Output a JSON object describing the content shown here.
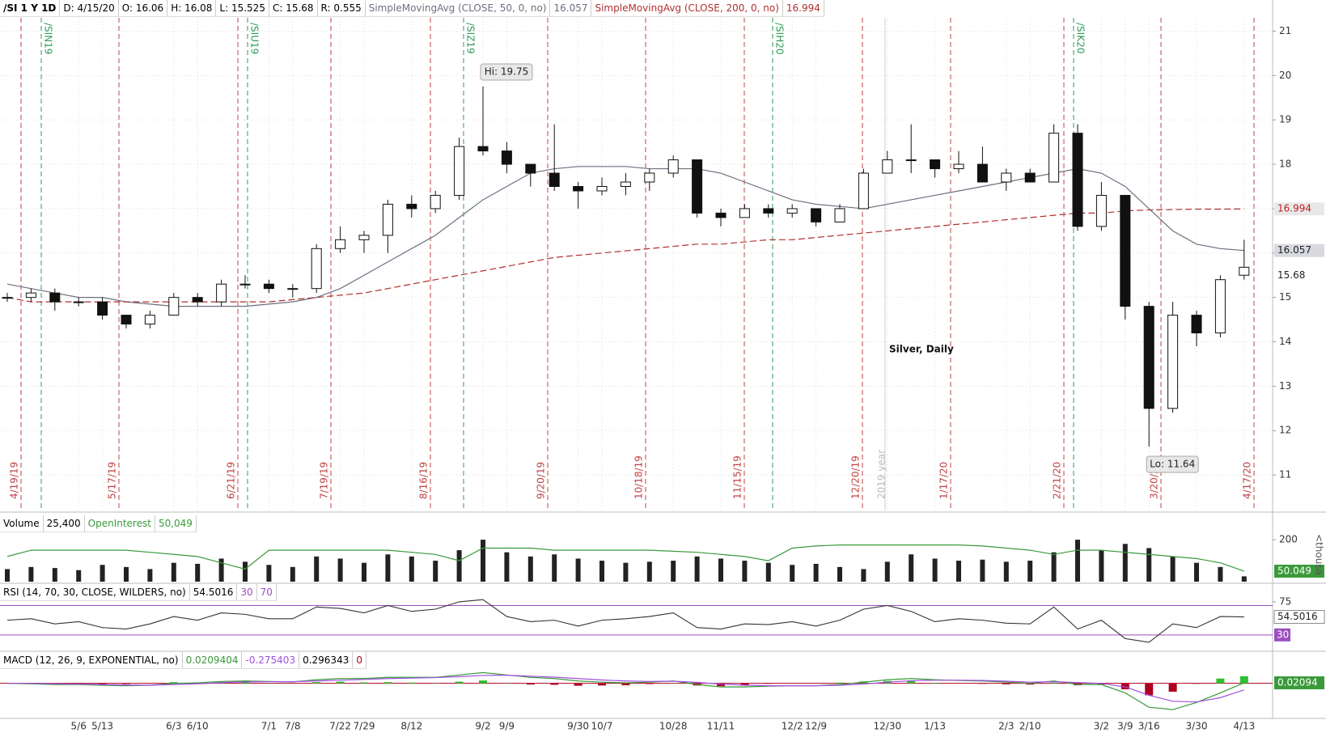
{
  "header": {
    "symbol": "/SI 1 Y 1D",
    "items": [
      "D: 4/15/20",
      "O: 16.06",
      "H: 16.08",
      "L: 15.525",
      "C: 15.68",
      "R: 0.555"
    ]
  },
  "chart_data": [
    {
      "type": "candlestick",
      "title": "Silver, Daily",
      "categories": [
        null,
        null,
        null,
        "5/6",
        "5/13",
        null,
        null,
        "6/3",
        "6/10",
        null,
        null,
        "7/1",
        "7/8",
        null,
        "7/22",
        "7/29",
        null,
        "8/12",
        null,
        null,
        "9/2",
        "9/9",
        null,
        null,
        "9/30",
        "10/7",
        null,
        null,
        "10/28",
        null,
        "11/11",
        null,
        null,
        "12/2",
        "12/9",
        null,
        null,
        "12/30",
        null,
        "1/13",
        null,
        null,
        "2/3",
        "2/10",
        null,
        null,
        "3/2",
        "3/9",
        "3/16",
        null,
        "3/30",
        null,
        "4/13"
      ],
      "open": [
        15.0,
        15.0,
        15.1,
        14.9,
        14.9,
        14.6,
        14.4,
        14.6,
        15.0,
        14.9,
        15.3,
        15.3,
        15.2,
        15.2,
        16.1,
        16.3,
        16.4,
        17.1,
        17.0,
        17.3,
        18.4,
        18.3,
        18.0,
        17.8,
        17.5,
        17.4,
        17.5,
        17.6,
        17.8,
        18.1,
        16.9,
        16.8,
        17.0,
        16.9,
        17.0,
        16.7,
        17.0,
        17.8,
        18.1,
        18.1,
        17.9,
        18.0,
        17.6,
        17.8,
        17.6,
        18.7,
        16.6,
        17.3,
        14.8,
        12.5,
        14.6,
        14.2,
        15.5
      ],
      "high": [
        15.1,
        15.2,
        15.2,
        15.0,
        15.0,
        14.6,
        14.7,
        15.1,
        15.1,
        15.4,
        15.5,
        15.4,
        15.3,
        16.2,
        16.6,
        16.5,
        17.2,
        17.3,
        17.4,
        18.6,
        19.75,
        18.5,
        18.0,
        18.9,
        17.6,
        17.7,
        17.8,
        17.9,
        18.2,
        18.1,
        17.0,
        17.1,
        17.1,
        17.1,
        17.0,
        17.1,
        17.9,
        18.3,
        18.9,
        18.1,
        18.3,
        18.4,
        17.9,
        17.9,
        18.9,
        18.9,
        17.6,
        17.3,
        14.9,
        14.9,
        14.7,
        15.5,
        16.3
      ],
      "low": [
        14.9,
        14.9,
        14.7,
        14.8,
        14.5,
        14.3,
        14.3,
        14.6,
        14.8,
        14.8,
        15.2,
        15.1,
        15.0,
        15.1,
        16.0,
        16.0,
        16.0,
        16.8,
        16.9,
        17.2,
        18.2,
        17.8,
        17.5,
        17.4,
        17.0,
        17.3,
        17.3,
        17.4,
        17.7,
        16.8,
        16.6,
        16.8,
        16.8,
        16.8,
        16.6,
        16.7,
        17.0,
        17.8,
        17.8,
        17.7,
        17.8,
        17.6,
        17.4,
        17.6,
        17.6,
        16.5,
        16.5,
        14.5,
        11.64,
        12.4,
        13.9,
        14.1,
        15.4
      ],
      "close": [
        15.0,
        15.1,
        14.9,
        14.9,
        14.6,
        14.4,
        14.6,
        15.0,
        14.9,
        15.3,
        15.3,
        15.2,
        15.2,
        16.1,
        16.3,
        16.4,
        17.1,
        17.0,
        17.3,
        18.4,
        18.3,
        18.0,
        17.8,
        17.5,
        17.4,
        17.5,
        17.6,
        17.8,
        18.1,
        16.9,
        16.8,
        17.0,
        16.9,
        17.0,
        16.7,
        17.0,
        17.8,
        18.1,
        18.1,
        17.9,
        18.0,
        17.6,
        17.8,
        17.6,
        18.7,
        16.6,
        17.3,
        14.8,
        12.5,
        14.6,
        14.2,
        15.4,
        15.68
      ],
      "series": [
        {
          "name": "SimpleMovingAvg (CLOSE, 50, 0, no)",
          "color": "#6b7080",
          "values": [
            15.3,
            15.2,
            15.1,
            15.0,
            15.0,
            14.9,
            14.85,
            14.8,
            14.8,
            14.8,
            14.8,
            14.85,
            14.9,
            15.0,
            15.2,
            15.5,
            15.8,
            16.1,
            16.4,
            16.8,
            17.2,
            17.5,
            17.8,
            17.9,
            17.95,
            17.95,
            17.95,
            17.9,
            17.9,
            17.9,
            17.8,
            17.6,
            17.4,
            17.2,
            17.1,
            17.05,
            17.0,
            17.1,
            17.2,
            17.3,
            17.4,
            17.5,
            17.6,
            17.7,
            17.8,
            17.9,
            17.8,
            17.5,
            17.0,
            16.5,
            16.2,
            16.1,
            16.057
          ]
        },
        {
          "name": "SimpleMovingAvg (CLOSE, 200, 0, no)",
          "color": "#b03030",
          "dashed": true,
          "values": [
            15.0,
            14.9,
            14.9,
            14.9,
            14.9,
            14.9,
            14.9,
            14.9,
            14.9,
            14.9,
            14.9,
            14.9,
            14.95,
            15.0,
            15.05,
            15.1,
            15.2,
            15.3,
            15.4,
            15.5,
            15.6,
            15.7,
            15.8,
            15.9,
            15.95,
            16.0,
            16.05,
            16.1,
            16.15,
            16.2,
            16.2,
            16.25,
            16.3,
            16.3,
            16.35,
            16.4,
            16.45,
            16.5,
            16.55,
            16.6,
            16.65,
            16.7,
            16.75,
            16.8,
            16.85,
            16.9,
            16.9,
            16.95,
            16.97,
            16.98,
            16.99,
            16.99,
            16.994
          ]
        }
      ],
      "ylim": [
        10.2,
        21.3
      ],
      "yticks": [
        11,
        12,
        13,
        14,
        15,
        16,
        17,
        18,
        19,
        20,
        21
      ],
      "grid": true,
      "annotations": [
        "Hi: 19.75",
        "Lo: 11.64"
      ],
      "expirations": [
        "4/19/19",
        "5/17/19",
        "6/21/19",
        "7/19/19",
        "8/16/19",
        "9/20/19",
        "10/18/19",
        "11/15/19",
        "12/20/19",
        "1/17/20",
        "2/21/20",
        "3/20/20",
        "4/17/20"
      ],
      "rolls": [
        "/SIN19",
        "/SIU19",
        "/SIZ19",
        "/SIH20",
        "/SIK20"
      ],
      "year_label": "2019 year"
    },
    {
      "type": "bar",
      "series": [
        {
          "name": "Volume",
          "color": "#222222",
          "values": [
            60,
            70,
            65,
            55,
            80,
            70,
            60,
            90,
            85,
            110,
            95,
            80,
            70,
            120,
            110,
            90,
            130,
            120,
            100,
            150,
            200,
            140,
            120,
            130,
            110,
            100,
            90,
            95,
            100,
            120,
            110,
            100,
            90,
            80,
            85,
            70,
            60,
            95,
            130,
            110,
            100,
            105,
            95,
            100,
            140,
            200,
            150,
            180,
            160,
            120,
            90,
            70,
            25.4
          ]
        },
        {
          "name": "OpenInterest",
          "color": "#3a9a3a",
          "values": [
            120,
            150,
            150,
            150,
            150,
            150,
            140,
            130,
            120,
            90,
            60,
            150,
            150,
            150,
            150,
            150,
            150,
            140,
            130,
            100,
            160,
            160,
            160,
            150,
            150,
            150,
            150,
            150,
            145,
            140,
            130,
            120,
            100,
            160,
            170,
            175,
            175,
            175,
            175,
            175,
            175,
            170,
            160,
            150,
            130,
            150,
            150,
            140,
            130,
            120,
            110,
            90,
            50.049
          ]
        }
      ],
      "legend_values": [
        "25,400",
        "50,049"
      ],
      "ylim": [
        0,
        320
      ],
      "yticks": [
        200
      ],
      "unit_label": "<thousa"
    },
    {
      "type": "line",
      "title": "RSI (14, 70, 30, CLOSE, WILDERS, no)",
      "series": [
        {
          "color": "#333333",
          "values": [
            50,
            52,
            45,
            48,
            40,
            38,
            45,
            55,
            50,
            60,
            58,
            52,
            52,
            68,
            66,
            60,
            70,
            62,
            65,
            75,
            78,
            55,
            48,
            50,
            42,
            50,
            52,
            55,
            60,
            40,
            38,
            45,
            44,
            48,
            42,
            50,
            65,
            70,
            62,
            48,
            52,
            50,
            46,
            45,
            68,
            38,
            50,
            25,
            20,
            45,
            40,
            55,
            54.5016
          ]
        }
      ],
      "levels": [
        30,
        70
      ],
      "level_color": "#9b4fc0",
      "ylim": [
        10,
        98
      ],
      "yticks": [
        75
      ]
    },
    {
      "type": "macd",
      "title": "MACD (12, 26, 9, EXPONENTIAL, no)",
      "values": [
        0,
        -0.02,
        -0.05,
        -0.05,
        -0.08,
        -0.1,
        -0.08,
        0,
        0.02,
        0.08,
        0.1,
        0.08,
        0.06,
        0.15,
        0.2,
        0.2,
        0.25,
        0.25,
        0.25,
        0.35,
        0.45,
        0.35,
        0.25,
        0.2,
        0.1,
        0.05,
        0.02,
        0.05,
        0.1,
        -0.05,
        -0.15,
        -0.15,
        -0.12,
        -0.1,
        -0.1,
        -0.05,
        0.05,
        0.15,
        0.2,
        0.15,
        0.12,
        0.1,
        0.05,
        0,
        0.1,
        -0.05,
        -0.05,
        -0.4,
        -1.0,
        -1.1,
        -0.8,
        -0.4,
        0.0209404
      ],
      "avg": [
        0,
        0,
        -0.02,
        -0.03,
        -0.05,
        -0.07,
        -0.08,
        -0.05,
        -0.02,
        0.03,
        0.06,
        0.07,
        0.07,
        0.1,
        0.13,
        0.16,
        0.2,
        0.22,
        0.24,
        0.28,
        0.33,
        0.34,
        0.3,
        0.26,
        0.2,
        0.14,
        0.1,
        0.08,
        0.09,
        0.04,
        -0.03,
        -0.08,
        -0.1,
        -0.1,
        -0.1,
        -0.08,
        -0.03,
        0.05,
        0.11,
        0.13,
        0.13,
        0.12,
        0.09,
        0.05,
        0.07,
        0.03,
        0,
        -0.15,
        -0.5,
        -0.75,
        -0.78,
        -0.6,
        -0.275403
      ],
      "diff": [
        0,
        -0.02,
        -0.03,
        -0.02,
        -0.03,
        -0.03,
        0,
        0.05,
        0.04,
        0.05,
        0.04,
        0.01,
        -0.01,
        0.05,
        0.07,
        0.04,
        0.05,
        0.03,
        0.01,
        0.07,
        0.12,
        0.01,
        -0.05,
        -0.06,
        -0.1,
        -0.09,
        -0.08,
        -0.03,
        0.01,
        -0.09,
        -0.12,
        -0.07,
        -0.02,
        0,
        0,
        0.03,
        0.08,
        0.1,
        0.09,
        0.02,
        -0.01,
        -0.02,
        -0.04,
        -0.05,
        0.03,
        -0.08,
        -0.05,
        -0.25,
        -0.5,
        -0.35,
        -0.02,
        0.2,
        0.296343
      ],
      "zero": 0,
      "colors": {
        "value": "#3a9a3a",
        "avg": "#a050e0",
        "up": "#2fbf2f",
        "down": "#b00020"
      },
      "tag_label": "0.02094",
      "ylim": [
        -1.4,
        0.7
      ]
    }
  ]
}
